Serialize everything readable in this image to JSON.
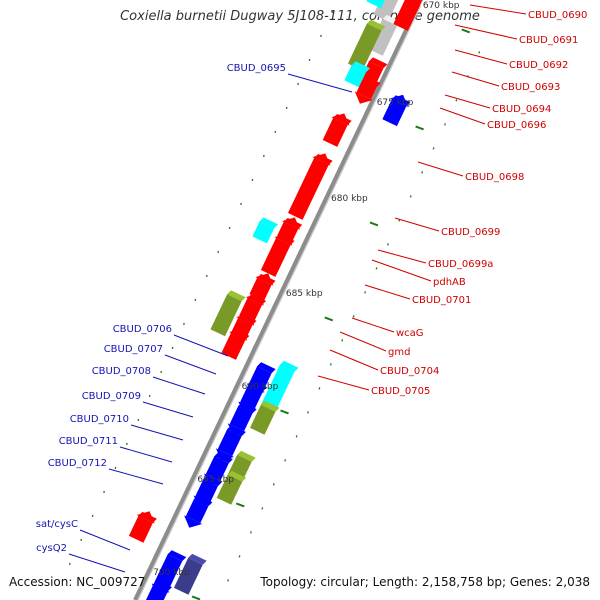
{
  "title": "Coxiella burnetii Dugway 5J108-111, complete genome",
  "footer": {
    "accession": "Accession: NC_009727",
    "topology": "Topology: circular; Length: 2,158,758 bp; Genes: 2,038"
  },
  "colors": {
    "backbone": "#8c8c8c",
    "label_left": "#1414b4",
    "label_right": "#d00000",
    "tick": "#1a7a1a",
    "gene_red": "#ff0000",
    "gene_blue": "#0000ff",
    "gene_cyan": "#00ffff",
    "gene_olive": "#7a9a28",
    "gene_grey": "#c0c0c0",
    "gene_darkblue": "#3c3c8c"
  },
  "kbp_labels": [
    {
      "text": "670 kbp"
    },
    {
      "text": "675 kbp"
    },
    {
      "text": "680 kbp"
    },
    {
      "text": "685 kbp"
    },
    {
      "text": "690 kbp"
    },
    {
      "text": "695 kbp"
    },
    {
      "text": "700 kbp"
    }
  ],
  "genes_right": [
    {
      "name": "CBUD_0690"
    },
    {
      "name": "CBUD_0691"
    },
    {
      "name": "CBUD_0692"
    },
    {
      "name": "CBUD_0693"
    },
    {
      "name": "CBUD_0694"
    },
    {
      "name": "CBUD_0696"
    },
    {
      "name": "CBUD_0698"
    },
    {
      "name": "CBUD_0699"
    },
    {
      "name": "CBUD_0699a"
    },
    {
      "name": "pdhAB"
    },
    {
      "name": "CBUD_0701"
    },
    {
      "name": "wcaG"
    },
    {
      "name": "gmd"
    },
    {
      "name": "CBUD_0704"
    },
    {
      "name": "CBUD_0705"
    }
  ],
  "genes_left": [
    {
      "name": "CBUD_0695"
    },
    {
      "name": "CBUD_0706"
    },
    {
      "name": "CBUD_0707"
    },
    {
      "name": "CBUD_0708"
    },
    {
      "name": "CBUD_0709"
    },
    {
      "name": "CBUD_0710"
    },
    {
      "name": "CBUD_0711"
    },
    {
      "name": "CBUD_0712"
    },
    {
      "name": "sat/cysC"
    },
    {
      "name": "cysQ2"
    }
  ]
}
